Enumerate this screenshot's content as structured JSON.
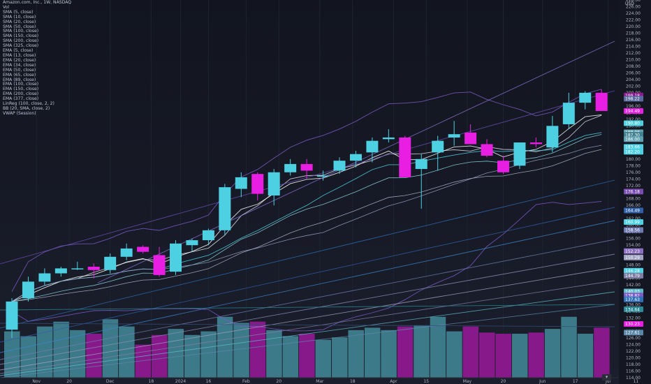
{
  "app": {
    "symbol_title": "Amazon.com, Inc., 1W, NASDAQ",
    "currency": "USD"
  },
  "legend": [
    "Amazon.com, Inc., 1W, NASDAQ",
    "Vol",
    "SMA (5, close)",
    "SMA (10, close)",
    "SMA (20, close)",
    "SMA (50, close)",
    "SMA (100, close)",
    "SMA (150, close)",
    "SMA (200, close)",
    "SMA (325, close)",
    "EMA (5, close)",
    "EMA (13, close)",
    "EMA (20, close)",
    "EMA (34, close)",
    "EMA (50, close)",
    "EMA (65, close)",
    "EMA (89, close)",
    "EMA (100, close)",
    "EMA (150, close)",
    "EMA (200, close)",
    "EMA (377, close)",
    "LinReg (100, close, 2, 2)",
    "BB (20, SMA, close, 2)",
    "VWAP (Session)"
  ],
  "colors": {
    "up": "#4dd0e1",
    "down": "#e91ee3",
    "vol_up": "#3f7f8e",
    "vol_down": "#8e198f",
    "background": "#141722",
    "text": "#b2b5be"
  },
  "chart_data": {
    "type": "candlestick",
    "timeframe": "1W",
    "ylim": [
      114,
      228
    ],
    "y_ticks": [
      114,
      116,
      118,
      120,
      122,
      124,
      126,
      128,
      130,
      132,
      134,
      136,
      138,
      140,
      142,
      144,
      146,
      148,
      150,
      152,
      154,
      156,
      158,
      160,
      162,
      164,
      166,
      168,
      170,
      172,
      174,
      176,
      178,
      180,
      182,
      184,
      186,
      188,
      190,
      192,
      194,
      196,
      198,
      200,
      202,
      204,
      206,
      208,
      210,
      212,
      214,
      216,
      218,
      220,
      222,
      224,
      226,
      228
    ],
    "x_tick_labels": [
      "Nov",
      "20",
      "Dec",
      "18",
      "2024",
      "16",
      "Feb",
      "20",
      "Mar",
      "18",
      "Apr",
      "15",
      "May",
      "20",
      "Jun",
      "17",
      "Jul",
      "11"
    ],
    "ohlc": [
      [
        128.5,
        138.0,
        126.0,
        137.0
      ],
      [
        138.0,
        144.5,
        137.0,
        143.0
      ],
      [
        143.0,
        147.0,
        142.0,
        145.5
      ],
      [
        145.5,
        147.5,
        144.5,
        147.0
      ],
      [
        147.0,
        149.0,
        146.5,
        147.0
      ],
      [
        147.5,
        148.5,
        144.0,
        146.5
      ],
      [
        146.5,
        151.5,
        145.5,
        150.5
      ],
      [
        150.5,
        154.5,
        149.5,
        153.0
      ],
      [
        153.5,
        154.0,
        151.5,
        152.0
      ],
      [
        151.0,
        153.5,
        144.5,
        145.0
      ],
      [
        146.0,
        155.5,
        145.0,
        154.5
      ],
      [
        154.0,
        156.0,
        152.0,
        155.5
      ],
      [
        155.5,
        159.0,
        154.0,
        158.5
      ],
      [
        158.5,
        172.5,
        157.0,
        171.5
      ],
      [
        171.0,
        176.0,
        168.5,
        174.5
      ],
      [
        175.5,
        176.0,
        167.5,
        169.5
      ],
      [
        169.0,
        177.0,
        166.0,
        176.0
      ],
      [
        176.0,
        180.0,
        175.0,
        178.5
      ],
      [
        178.5,
        180.0,
        174.0,
        176.5
      ],
      [
        175.0,
        176.5,
        173.5,
        175.0
      ],
      [
        176.5,
        180.5,
        175.5,
        179.5
      ],
      [
        179.5,
        182.5,
        177.5,
        181.5
      ],
      [
        182.0,
        186.5,
        179.0,
        185.5
      ],
      [
        186.0,
        189.0,
        185.0,
        186.5
      ],
      [
        186.5,
        187.0,
        174.5,
        174.5
      ],
      [
        177.0,
        181.5,
        165.0,
        180.0
      ],
      [
        182.0,
        187.0,
        176.5,
        185.5
      ],
      [
        186.5,
        191.5,
        184.0,
        187.5
      ],
      [
        188.0,
        190.5,
        184.5,
        184.5
      ],
      [
        184.5,
        186.0,
        180.5,
        181.0
      ],
      [
        179.5,
        181.0,
        175.5,
        176.0
      ],
      [
        178.0,
        185.0,
        177.0,
        185.0
      ],
      [
        185.0,
        186.5,
        183.5,
        184.5
      ],
      [
        183.5,
        193.0,
        182.0,
        190.0
      ],
      [
        190.5,
        200.0,
        189.0,
        197.0
      ],
      [
        197.0,
        200.5,
        195.0,
        200.0
      ],
      [
        200.0,
        201.0,
        194.5,
        194.5
      ]
    ],
    "volume": [
      51,
      47,
      55,
      59,
      52,
      49,
      61,
      55,
      40,
      48,
      53,
      48,
      51,
      63,
      58,
      59,
      52,
      47,
      49,
      44,
      46,
      52,
      54,
      52,
      55,
      56,
      63,
      51,
      55,
      50,
      49,
      49,
      50,
      53,
      63,
      49,
      54
    ],
    "price_labels": [
      "199.18",
      "198.22",
      "194.49",
      "190.80",
      "188.08",
      "187.30",
      "186.00",
      "183.66",
      "182.20",
      "176.18",
      "164.49",
      "160.99",
      "158.56",
      "152.23",
      "150.29",
      "146.28",
      "144.79",
      "140.03",
      "138.82",
      "137.63",
      "134.64",
      "130.23",
      "127.61"
    ],
    "bottom_axis_label_left": "114.00"
  }
}
